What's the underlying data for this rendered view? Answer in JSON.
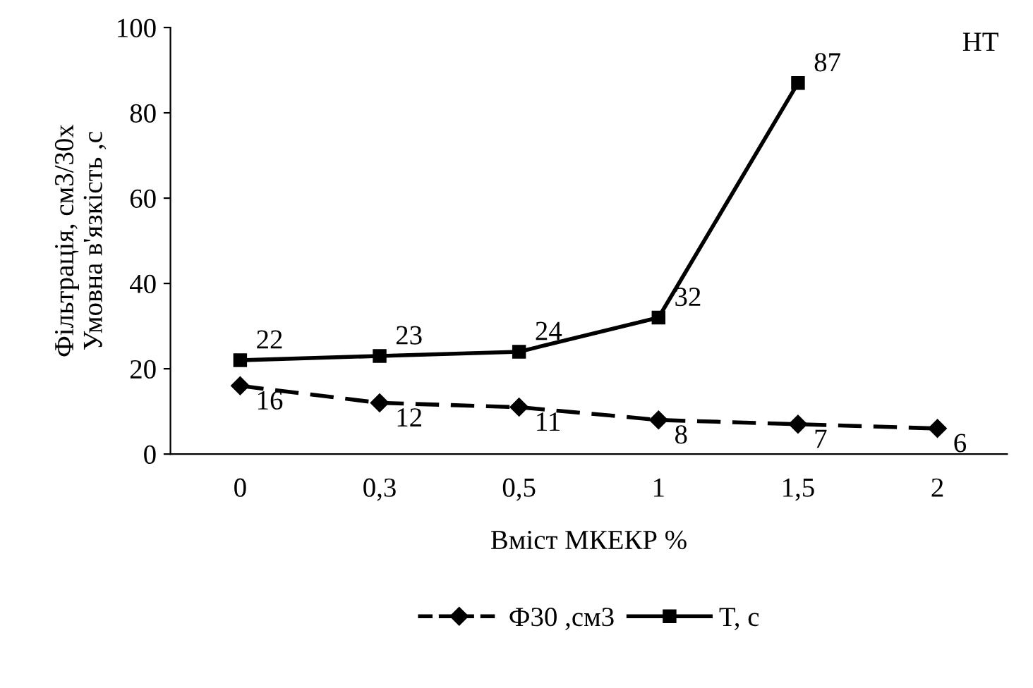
{
  "chart_data": {
    "type": "line",
    "xlabel": "Вміст МКЕКР %",
    "ylabel": "Фільтрація, см3/30х\nУмовна в'язкість ,с",
    "categories": [
      "0",
      "0,3",
      "0,5",
      "1",
      "1,5",
      "2"
    ],
    "series": [
      {
        "name": "Ф30 ,см3",
        "color": "#000000",
        "values": [
          16,
          12,
          11,
          8,
          7,
          6
        ],
        "marker": "diamond",
        "line_style": "dashed"
      },
      {
        "name": "T, с",
        "color": "#000000",
        "values": [
          22,
          23,
          24,
          32,
          87,
          null
        ],
        "marker": "square",
        "line_style": "solid"
      }
    ],
    "ylim": [
      0,
      100
    ],
    "yticks": [
      0,
      20,
      40,
      60,
      80,
      100
    ],
    "grid": false,
    "legend": "bottom",
    "data_labels": true,
    "annotations": [
      "HT"
    ]
  }
}
